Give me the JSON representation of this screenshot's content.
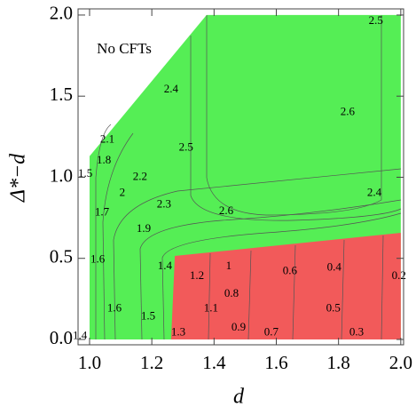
{
  "chart_data": {
    "type": "contour",
    "xlabel": "d",
    "ylabel": "Δ*−d",
    "annotation": "No CFTs",
    "xlim": [
      0.963,
      2.009
    ],
    "ylim": [
      -0.033,
      2.038
    ],
    "xticks": [
      {
        "value": 1.0,
        "label": "1.0"
      },
      {
        "value": 1.2,
        "label": "1.2"
      },
      {
        "value": 1.4,
        "label": "1.4"
      },
      {
        "value": 1.6,
        "label": "1.6"
      },
      {
        "value": 1.8,
        "label": "1.8"
      },
      {
        "value": 2.0,
        "label": "2.0"
      }
    ],
    "yticks": [
      {
        "value": 0.0,
        "label": "0.0"
      },
      {
        "value": 0.5,
        "label": "0.5"
      },
      {
        "value": 1.0,
        "label": "1.0"
      },
      {
        "value": 1.5,
        "label": "1.5"
      },
      {
        "value": 2.0,
        "label": "2.0"
      }
    ],
    "regions": [
      {
        "color": "#55ee55",
        "x": [
          1.0,
          1.0,
          1.376,
          2.0,
          2.0
        ],
        "y": [
          0,
          1.13,
          2.0,
          2.0,
          0
        ]
      },
      {
        "color": "#f25a5a",
        "x": [
          1.262,
          1.274,
          2.0,
          2.0
        ],
        "y": [
          0,
          0.515,
          0.657,
          0
        ]
      }
    ],
    "contour_labels": [
      {
        "value": 2.5,
        "x": 1.92,
        "y": 1.96
      },
      {
        "value": 2.4,
        "x": 1.262,
        "y": 1.54
      },
      {
        "value": 2.6,
        "x": 1.829,
        "y": 1.4
      },
      {
        "value": 2.1,
        "x": 1.057,
        "y": 1.23
      },
      {
        "value": 1.8,
        "x": 1.046,
        "y": 1.1
      },
      {
        "value": 1.5,
        "x": 0.986,
        "y": 1.02
      },
      {
        "value": 2.5,
        "x": 1.31,
        "y": 1.18
      },
      {
        "value": 2.2,
        "x": 1.162,
        "y": 1.0
      },
      {
        "value": 2,
        "x": 1.105,
        "y": 0.9
      },
      {
        "value": 2.3,
        "x": 1.239,
        "y": 0.83
      },
      {
        "value": 1.7,
        "x": 1.04,
        "y": 0.78
      },
      {
        "value": 2.6,
        "x": 1.439,
        "y": 0.79
      },
      {
        "value": 2.4,
        "x": 1.915,
        "y": 0.9
      },
      {
        "value": 1.9,
        "x": 1.174,
        "y": 0.68
      },
      {
        "value": 1.6,
        "x": 1.026,
        "y": 0.49
      },
      {
        "value": 1.4,
        "x": 1.242,
        "y": 0.45
      },
      {
        "value": 1.2,
        "x": 1.345,
        "y": 0.39
      },
      {
        "value": 1,
        "x": 1.447,
        "y": 0.45
      },
      {
        "value": 0.8,
        "x": 1.456,
        "y": 0.28
      },
      {
        "value": 0.6,
        "x": 1.644,
        "y": 0.42
      },
      {
        "value": 0.4,
        "x": 1.786,
        "y": 0.44
      },
      {
        "value": 0.2,
        "x": 1.994,
        "y": 0.39
      },
      {
        "value": 1.6,
        "x": 1.08,
        "y": 0.19
      },
      {
        "value": 1.5,
        "x": 1.188,
        "y": 0.14
      },
      {
        "value": 1.1,
        "x": 1.39,
        "y": 0.19
      },
      {
        "value": 1.3,
        "x": 1.285,
        "y": 0.04
      },
      {
        "value": 0.9,
        "x": 1.479,
        "y": 0.07
      },
      {
        "value": 0.7,
        "x": 1.584,
        "y": 0.04
      },
      {
        "value": 0.5,
        "x": 1.783,
        "y": 0.19
      },
      {
        "value": 0.3,
        "x": 1.858,
        "y": 0.04
      },
      {
        "value": 1.4,
        "x": 0.969,
        "y": 0.02
      }
    ]
  }
}
